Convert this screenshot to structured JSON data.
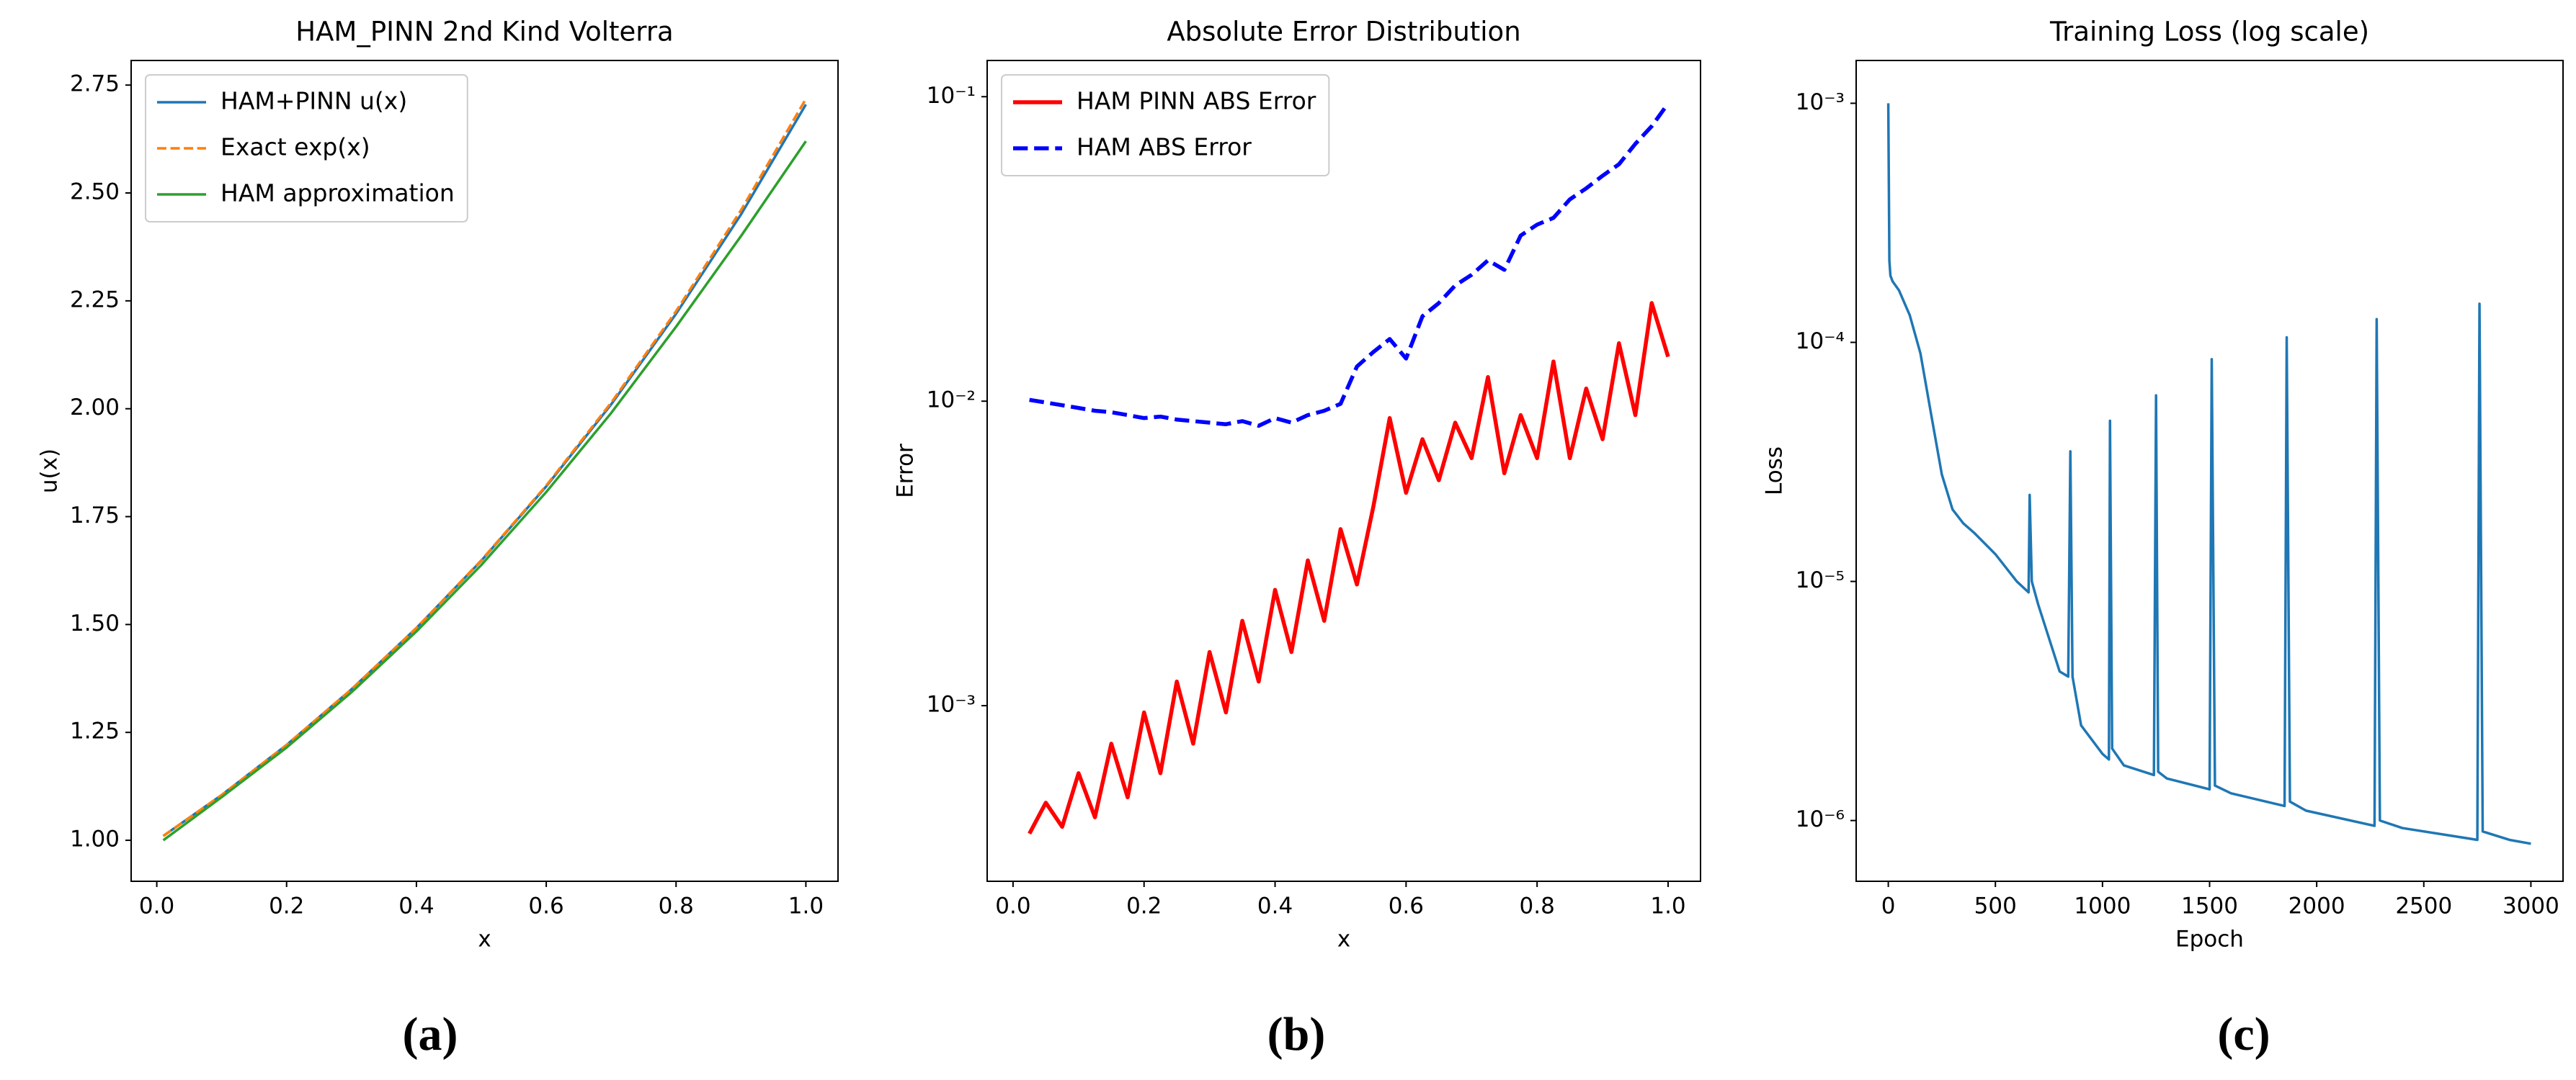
{
  "chart_data": [
    {
      "type": "line",
      "title": "HAM_PINN 2nd Kind Volterra",
      "xlabel": "x",
      "ylabel": "u(x)",
      "caption": "(a)",
      "x": [
        0.01,
        0.1,
        0.2,
        0.3,
        0.4,
        0.5,
        0.6,
        0.7,
        0.8,
        0.9,
        1.0
      ],
      "series": [
        {
          "name": "HAM+PINN u(x)",
          "color": "#1f77b4",
          "linestyle": "solid",
          "values": [
            1.01,
            1.105,
            1.221,
            1.35,
            1.492,
            1.648,
            1.82,
            2.01,
            2.22,
            2.45,
            2.705
          ]
        },
        {
          "name": "Exact exp(x)",
          "color": "#ff7f0e",
          "linestyle": "dashed",
          "values": [
            1.01,
            1.105,
            1.221,
            1.35,
            1.492,
            1.649,
            1.822,
            2.014,
            2.226,
            2.46,
            2.718
          ]
        },
        {
          "name": "HAM approximation",
          "color": "#2ca02c",
          "linestyle": "solid",
          "values": [
            1.0,
            1.1,
            1.215,
            1.343,
            1.484,
            1.638,
            1.807,
            1.99,
            2.19,
            2.4,
            2.62
          ]
        }
      ],
      "xlim": [
        -0.0395,
        1.0495
      ],
      "xticks": [
        {
          "value": 0,
          "label": "0.0"
        },
        0.2,
        0.4,
        0.6,
        0.8,
        {
          "value": 1,
          "label": "1.0"
        }
      ],
      "ylim": [
        0.905,
        2.807
      ],
      "yticks": [
        {
          "value": 1,
          "label": "1.00"
        },
        1.25,
        {
          "value": 1.5,
          "label": "1.50"
        },
        1.75,
        {
          "value": 2,
          "label": "2.00"
        },
        2.25,
        {
          "value": 2.5,
          "label": "2.50"
        },
        2.75
      ],
      "log_y": false,
      "legend": "upper left"
    },
    {
      "type": "line",
      "title": "Absolute Error Distribution",
      "xlabel": "x",
      "ylabel": "Error",
      "caption": "(b)",
      "x": [
        0.025,
        0.05,
        0.075,
        0.1,
        0.125,
        0.15,
        0.175,
        0.2,
        0.225,
        0.25,
        0.275,
        0.3,
        0.325,
        0.35,
        0.375,
        0.4,
        0.425,
        0.45,
        0.475,
        0.5,
        0.525,
        0.55,
        0.575,
        0.6,
        0.625,
        0.65,
        0.675,
        0.7,
        0.725,
        0.75,
        0.775,
        0.8,
        0.825,
        0.85,
        0.875,
        0.9,
        0.925,
        0.95,
        0.975,
        1.0
      ],
      "series": [
        {
          "name": "HAM PINN ABS Error",
          "color": "#ff0000",
          "linestyle": "solid",
          "values": [
            0.00038,
            0.00048,
            0.0004,
            0.0006,
            0.00043,
            0.00075,
            0.0005,
            0.00095,
            0.0006,
            0.0012,
            0.00075,
            0.0015,
            0.00095,
            0.0019,
            0.0012,
            0.0024,
            0.0015,
            0.003,
            0.0019,
            0.0038,
            0.0025,
            0.0045,
            0.0088,
            0.005,
            0.0075,
            0.0055,
            0.0085,
            0.0065,
            0.012,
            0.0058,
            0.009,
            0.0065,
            0.0135,
            0.0065,
            0.011,
            0.0075,
            0.0155,
            0.009,
            0.021,
            0.014
          ]
        },
        {
          "name": "HAM ABS Error",
          "color": "#0000ff",
          "linestyle": "dashed",
          "values": [
            0.0101,
            0.0099,
            0.0097,
            0.0095,
            0.0093,
            0.0092,
            0.009,
            0.0088,
            0.0089,
            0.0087,
            0.0086,
            0.0085,
            0.0084,
            0.0086,
            0.0083,
            0.0088,
            0.0085,
            0.009,
            0.0093,
            0.0098,
            0.013,
            0.0145,
            0.016,
            0.0138,
            0.019,
            0.021,
            0.024,
            0.026,
            0.029,
            0.027,
            0.035,
            0.038,
            0.04,
            0.046,
            0.05,
            0.055,
            0.06,
            0.07,
            0.08,
            0.095
          ]
        }
      ],
      "xlim": [
        -0.0395,
        1.0495
      ],
      "xticks": [
        {
          "value": 0,
          "label": "0.0"
        },
        0.2,
        0.4,
        0.6,
        0.8,
        {
          "value": 1,
          "label": "1.0"
        }
      ],
      "ylim": [
        0.000265,
        0.1315
      ],
      "yticks": [
        {
          "value": 0.001,
          "label": "10⁻³"
        },
        {
          "value": 0.01,
          "label": "10⁻²"
        },
        {
          "value": 0.1,
          "label": "10⁻¹"
        }
      ],
      "log_y": true,
      "legend": "upper left"
    },
    {
      "type": "line",
      "title": "Training Loss (log scale)",
      "xlabel": "Epoch",
      "ylabel": "Loss",
      "caption": "(c)",
      "x": [
        0,
        5,
        10,
        20,
        50,
        100,
        150,
        200,
        250,
        300,
        350,
        400,
        500,
        600,
        655,
        660,
        670,
        700,
        800,
        840,
        850,
        860,
        900,
        1000,
        1030,
        1035,
        1045,
        1100,
        1240,
        1250,
        1260,
        1300,
        1500,
        1510,
        1525,
        1600,
        1850,
        1860,
        1875,
        1950,
        2270,
        2280,
        2295,
        2400,
        2750,
        2760,
        2775,
        2900,
        3000
      ],
      "series": [
        {
          "color": "#1f77b4",
          "linestyle": "solid",
          "values": [
            0.001,
            0.00022,
            0.00019,
            0.00018,
            0.000165,
            0.00013,
            9e-05,
            5e-05,
            2.8e-05,
            2e-05,
            1.75e-05,
            1.6e-05,
            1.3e-05,
            1e-05,
            9e-06,
            2.3e-05,
            1e-05,
            8e-06,
            4.2e-06,
            4e-06,
            3.5e-05,
            4e-06,
            2.5e-06,
            1.9e-06,
            1.8e-06,
            4.7e-05,
            2e-06,
            1.7e-06,
            1.55e-06,
            6e-05,
            1.6e-06,
            1.5e-06,
            1.35e-06,
            8.5e-05,
            1.4e-06,
            1.3e-06,
            1.15e-06,
            0.000105,
            1.2e-06,
            1.1e-06,
            9.5e-07,
            0.000125,
            1e-06,
            9.3e-07,
            8.3e-07,
            0.000145,
            9e-07,
            8.3e-07,
            8e-07
          ]
        }
      ],
      "xlim": [
        -150,
        3150
      ],
      "xticks": [
        0,
        500,
        1000,
        1500,
        2000,
        2500,
        3000
      ],
      "ylim": [
        5.57e-07,
        0.00151
      ],
      "yticks": [
        {
          "value": 1e-06,
          "label": "10⁻⁶"
        },
        {
          "value": 1e-05,
          "label": "10⁻⁵"
        },
        {
          "value": 0.0001,
          "label": "10⁻⁴"
        },
        {
          "value": 0.001,
          "label": "10⁻³"
        }
      ],
      "log_y": true
    }
  ]
}
